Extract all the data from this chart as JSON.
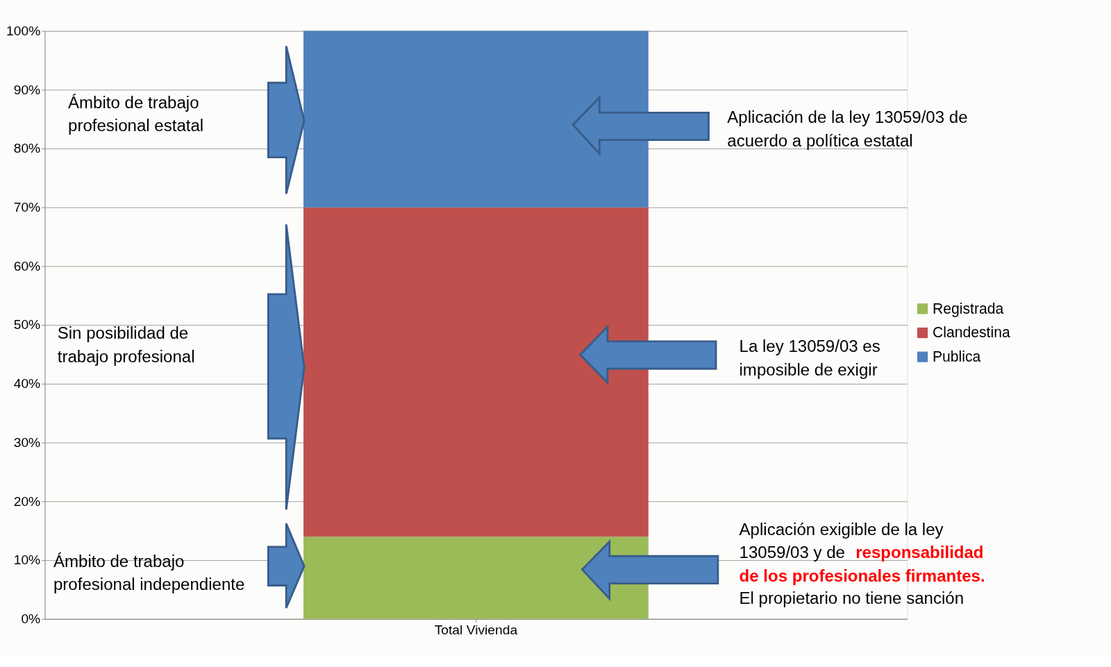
{
  "chart_data": {
    "type": "bar",
    "stacked": true,
    "categories": [
      "Total Vivienda"
    ],
    "series": [
      {
        "name": "Registrada",
        "color": "#9bbb59",
        "values": [
          14
        ]
      },
      {
        "name": "Clandestina",
        "color": "#c0504d",
        "values": [
          56
        ]
      },
      {
        "name": "Publica",
        "color": "#4f81bd",
        "values": [
          30
        ]
      }
    ],
    "ylim": [
      0,
      100
    ],
    "yticks": [
      {
        "value": 0,
        "label": "0%"
      },
      {
        "value": 10,
        "label": "10%"
      },
      {
        "value": 20,
        "label": "20%"
      },
      {
        "value": 30,
        "label": "30%"
      },
      {
        "value": 40,
        "label": "40%"
      },
      {
        "value": 50,
        "label": "50%"
      },
      {
        "value": 60,
        "label": "60%"
      },
      {
        "value": 70,
        "label": "70%"
      },
      {
        "value": 80,
        "label": "80%"
      },
      {
        "value": 90,
        "label": "90%"
      },
      {
        "value": 100,
        "label": "100%"
      }
    ],
    "grid": "y",
    "legend": "right",
    "annotations": [
      "Ámbito de trabajo\nprofesional estatal",
      "Sin posibilidad de\ntrabajo profesional",
      "Ámbito de trabajo\nprofesional independiente",
      "Aplicación de la ley 13059/03 de\nacuerdo a política estatal",
      "La ley 13059/03 es\nimposible de exigir",
      "Aplicación exigible de la ley\n13059/03 y de",
      "responsabilidad",
      "de los profesionales firmantes.",
      "El propietario no tiene sanción"
    ]
  }
}
